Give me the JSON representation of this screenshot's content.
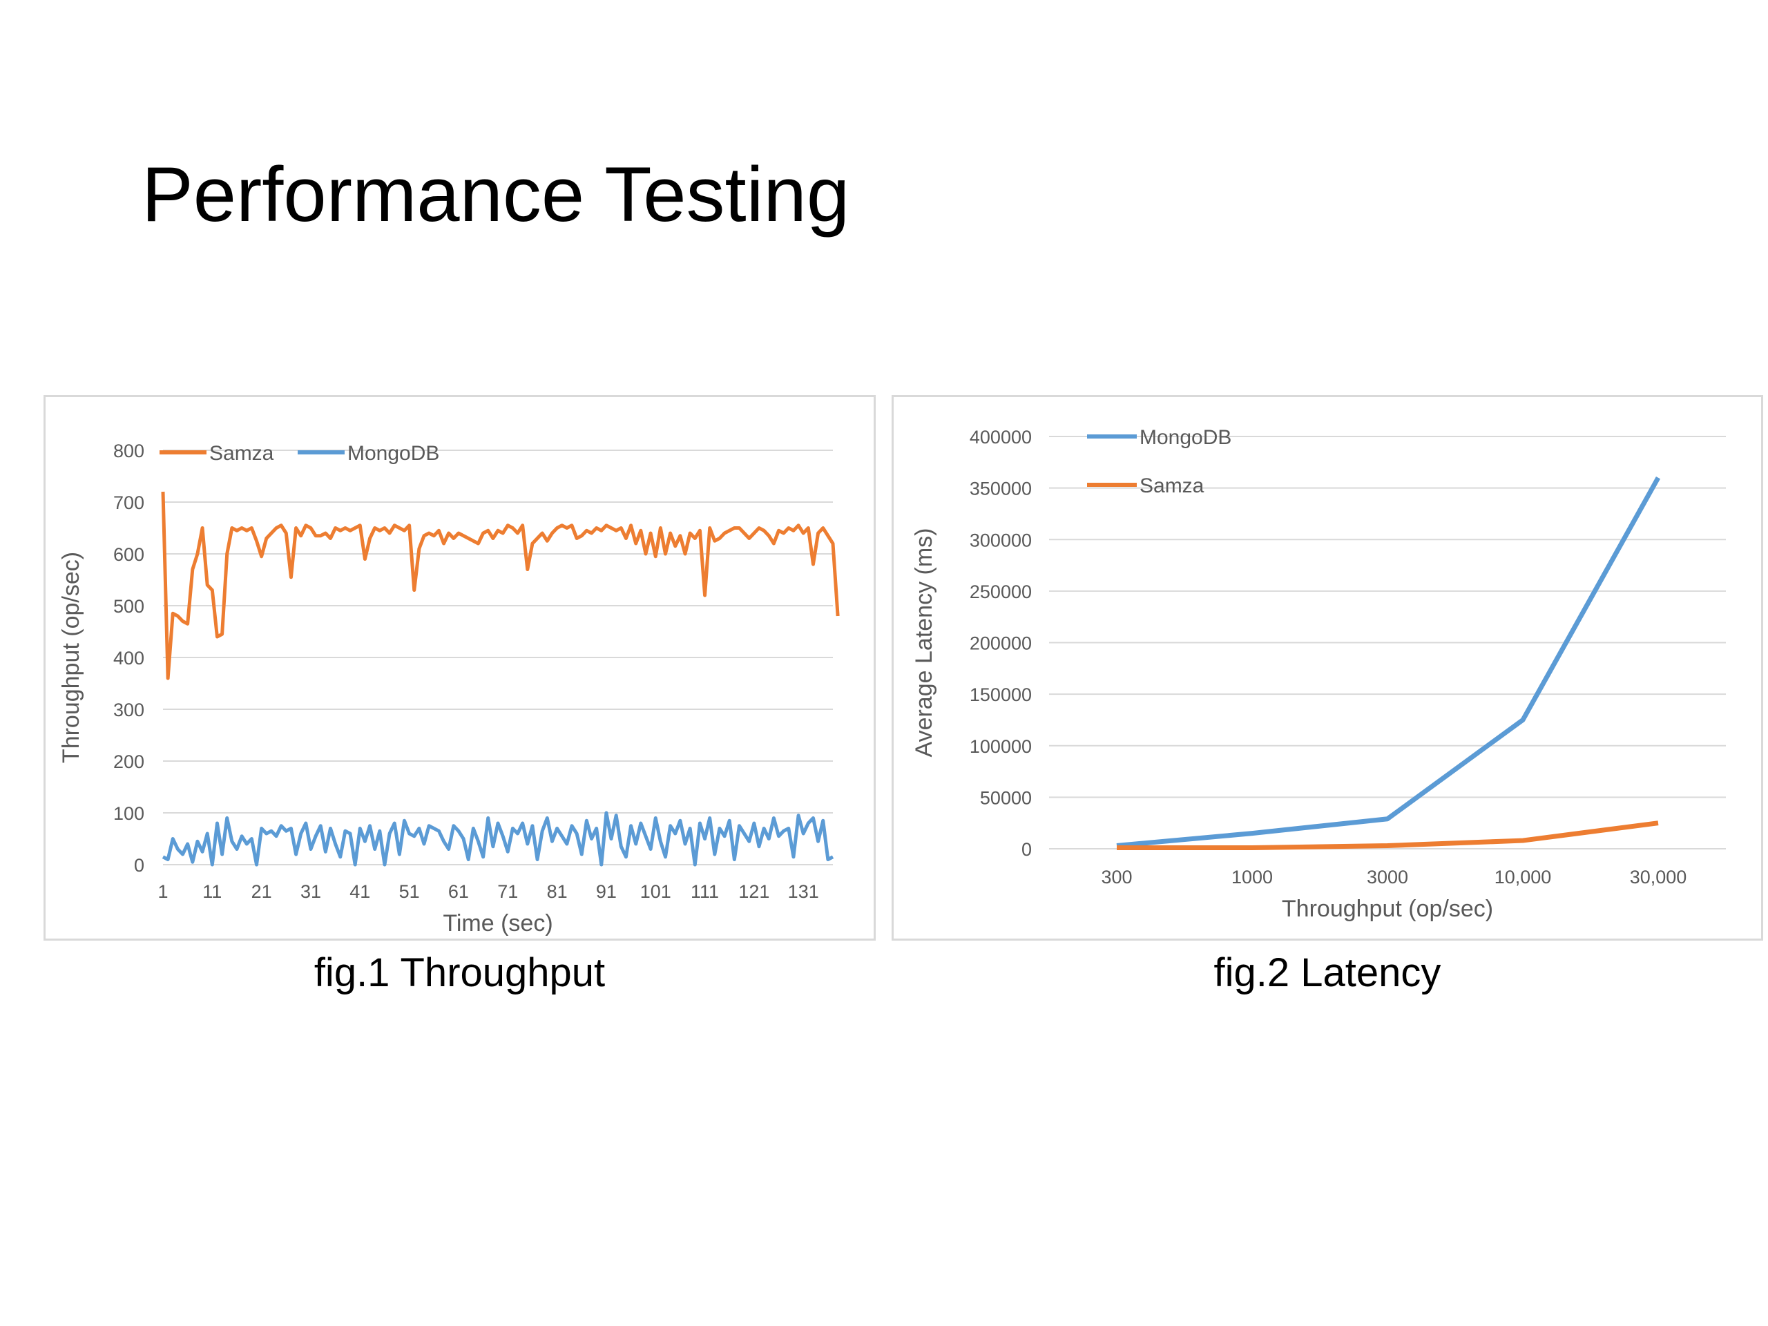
{
  "slide": {
    "title": "Performance Testing"
  },
  "captions": {
    "fig1": "fig.1 Throughput",
    "fig2": "fig.2 Latency"
  },
  "chart_data": [
    {
      "type": "line",
      "xlabel": "Time (sec)",
      "ylabel": "Throughput (op/sec)",
      "ylim": [
        0,
        800
      ],
      "yticks": [
        "0",
        "100",
        "200",
        "300",
        "400",
        "500",
        "600",
        "700",
        "800"
      ],
      "xticks": [
        "1",
        "11",
        "21",
        "31",
        "41",
        "51",
        "61",
        "71",
        "81",
        "91",
        "101",
        "111",
        "121",
        "131"
      ],
      "xlim": [
        1,
        137
      ],
      "grid": true,
      "legend": "top-left",
      "series": [
        {
          "name": "Samza",
          "color": "#ed7d31",
          "values": [
            720,
            360,
            485,
            480,
            470,
            465,
            570,
            600,
            650,
            540,
            530,
            440,
            445,
            600,
            650,
            645,
            650,
            645,
            650,
            625,
            595,
            630,
            640,
            650,
            655,
            640,
            555,
            650,
            635,
            655,
            650,
            635,
            635,
            640,
            630,
            650,
            645,
            650,
            645,
            650,
            655,
            590,
            630,
            650,
            645,
            650,
            640,
            655,
            650,
            645,
            655,
            530,
            610,
            635,
            640,
            635,
            645,
            620,
            640,
            630,
            640,
            635,
            630,
            625,
            620,
            640,
            645,
            630,
            645,
            640,
            655,
            650,
            640,
            655,
            570,
            620,
            630,
            640,
            625,
            640,
            650,
            655,
            650,
            655,
            630,
            635,
            645,
            640,
            650,
            645,
            655,
            650,
            645,
            650,
            630,
            655,
            620,
            645,
            600,
            640,
            595,
            650,
            600,
            640,
            615,
            635,
            600,
            640,
            630,
            645,
            520,
            650,
            625,
            630,
            640,
            645,
            650,
            650,
            640,
            630,
            640,
            650,
            645,
            635,
            620,
            645,
            640,
            650,
            645,
            655,
            640,
            650,
            580,
            640,
            650,
            635,
            620,
            480
          ]
        },
        {
          "name": "MongoDB",
          "color": "#5b9bd5",
          "values": [
            15,
            10,
            50,
            30,
            20,
            40,
            5,
            45,
            25,
            60,
            0,
            80,
            20,
            90,
            45,
            30,
            55,
            40,
            50,
            0,
            70,
            60,
            65,
            55,
            75,
            65,
            70,
            20,
            60,
            80,
            30,
            55,
            75,
            25,
            70,
            40,
            15,
            65,
            60,
            0,
            70,
            45,
            75,
            30,
            65,
            0,
            60,
            80,
            20,
            85,
            60,
            55,
            70,
            40,
            75,
            70,
            65,
            45,
            30,
            75,
            65,
            50,
            10,
            70,
            45,
            15,
            90,
            35,
            80,
            55,
            25,
            70,
            60,
            80,
            40,
            75,
            10,
            65,
            90,
            45,
            70,
            55,
            40,
            75,
            60,
            20,
            85,
            50,
            70,
            0,
            100,
            50,
            95,
            35,
            15,
            75,
            40,
            80,
            55,
            30,
            90,
            45,
            15,
            75,
            60,
            85,
            40,
            70,
            0,
            80,
            50,
            90,
            20,
            70,
            55,
            85,
            10,
            75,
            60,
            45,
            80,
            35,
            70,
            50,
            90,
            55,
            65,
            70,
            15,
            95,
            60,
            80,
            90,
            45,
            85,
            10,
            15
          ]
        }
      ]
    },
    {
      "type": "line",
      "xlabel": "Throughput (op/sec)",
      "ylabel": "Average Latency (ms)",
      "ylim": [
        0,
        400000
      ],
      "yticks": [
        "0",
        "50000",
        "100000",
        "150000",
        "200000",
        "250000",
        "300000",
        "350000",
        "400000"
      ],
      "categories": [
        "300",
        "1000",
        "3000",
        "10,000",
        "30,000"
      ],
      "grid": true,
      "legend": "top-left",
      "series": [
        {
          "name": "MongoDB",
          "color": "#5b9bd5",
          "values": [
            3000,
            15000,
            29000,
            125000,
            360000
          ]
        },
        {
          "name": "Samza",
          "color": "#ed7d31",
          "values": [
            1000,
            1000,
            3000,
            8000,
            25000
          ]
        }
      ]
    }
  ]
}
